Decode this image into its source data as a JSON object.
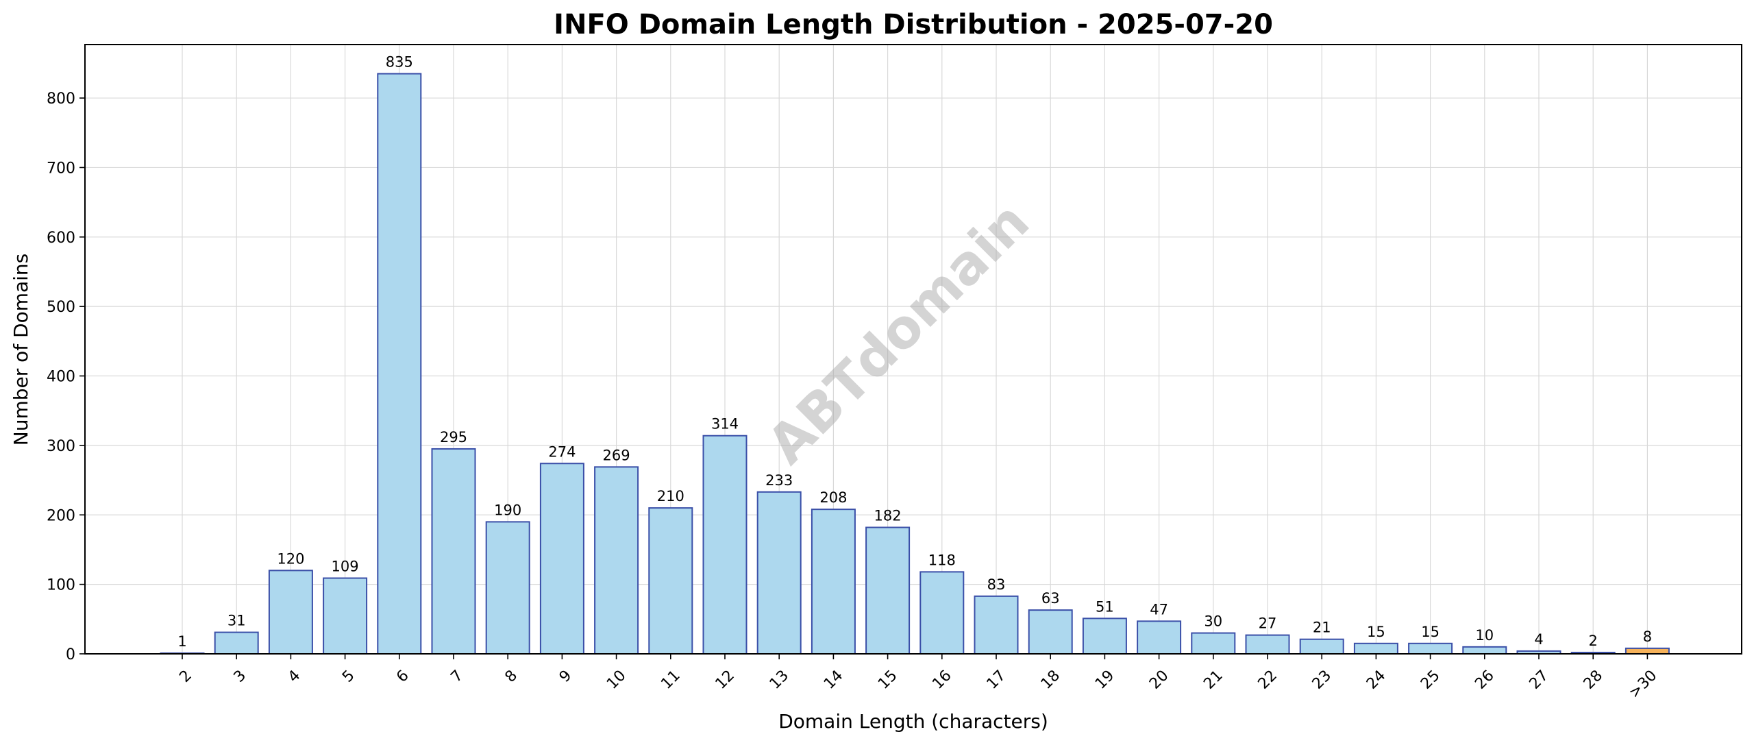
{
  "chart_data": {
    "type": "bar",
    "title": "INFO Domain Length Distribution - 2025-07-20",
    "xlabel": "Domain Length (characters)",
    "ylabel": "Number of Domains",
    "categories": [
      "2",
      "3",
      "4",
      "5",
      "6",
      "7",
      "8",
      "9",
      "10",
      "11",
      "12",
      "13",
      "14",
      "15",
      "16",
      "17",
      "18",
      "19",
      "20",
      "21",
      "22",
      "23",
      "24",
      "25",
      "26",
      "27",
      "28",
      ">30"
    ],
    "values": [
      1,
      31,
      120,
      109,
      835,
      295,
      190,
      274,
      269,
      210,
      314,
      233,
      208,
      182,
      118,
      83,
      63,
      51,
      47,
      30,
      27,
      21,
      15,
      15,
      10,
      4,
      2,
      8
    ],
    "ylim": [
      0,
      877
    ],
    "yticks": [
      0,
      100,
      200,
      300,
      400,
      500,
      600,
      700,
      800
    ],
    "grid": true,
    "watermark": "ABTdomain",
    "colors": {
      "bar_fill": "#add8ee",
      "bar_edge": "#3a4fa8",
      "highlight_fill": "#f6b25a",
      "highlight_edge": "#3a4fa8",
      "grid": "#d9d9d9"
    },
    "highlight_category": ">30"
  }
}
